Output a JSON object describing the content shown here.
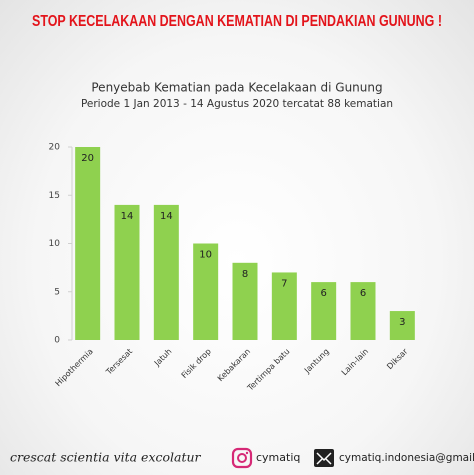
{
  "banner": "STOP KECELAKAAN DENGAN KEMATIAN DI PENDAKIAN GUNUNG !",
  "chart_data": {
    "type": "bar",
    "title": "Penyebab Kematian pada Kecelakaan di Gunung",
    "subtitle": "Periode 1 Jan 2013 - 14 Agustus 2020 tercatat 88 kematian",
    "categories": [
      "Hipothermia",
      "Tersesat",
      "Jatuh",
      "Fisik drop",
      "Kebakaran",
      "Tertimpa batu",
      "Jantung",
      "Lain-lain",
      "Diksar"
    ],
    "values": [
      20,
      14,
      14,
      10,
      8,
      7,
      6,
      6,
      3
    ],
    "color": "#8fd14f",
    "ylim": [
      0,
      20
    ],
    "yticks": [
      0,
      5,
      10,
      15,
      20
    ],
    "grid": false
  },
  "footer": {
    "motto": "crescat scientia vita excolatur",
    "instagram": "cymatiq",
    "email": "cymatiq.indonesia@gmail.com"
  }
}
